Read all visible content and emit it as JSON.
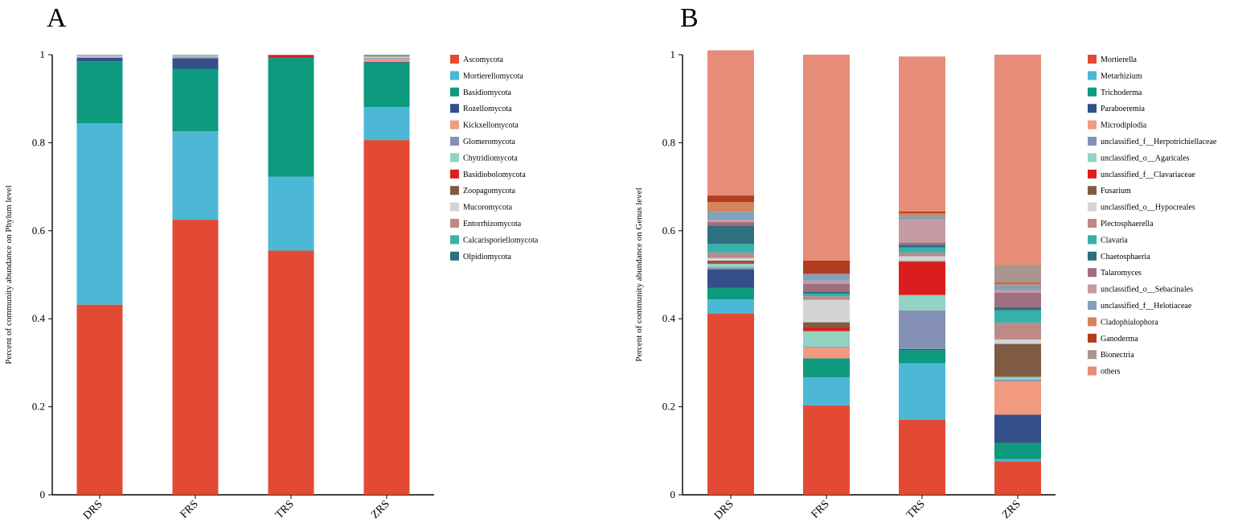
{
  "chart_data": [
    {
      "panel_letter": "A",
      "type": "bar",
      "stacked": true,
      "title": "",
      "xlabel": "",
      "ylabel": "Percent of community abundance on Phylum level",
      "ylim": [
        0,
        1
      ],
      "yticks": [
        "0",
        "0.2",
        "0.4",
        "0.6",
        "0.8",
        "1"
      ],
      "categories": [
        "DRS",
        "FRS",
        "TRS",
        "ZRS"
      ],
      "legend_position": "right",
      "series": [
        {
          "name": "Ascomycota",
          "color": "#e34a33",
          "values": [
            0.432,
            0.625,
            0.555,
            0.806
          ]
        },
        {
          "name": "Mortierellomycota",
          "color": "#4cb8d6",
          "values": [
            0.412,
            0.201,
            0.168,
            0.075
          ]
        },
        {
          "name": "Basidiomycota",
          "color": "#0e9a7e",
          "values": [
            0.141,
            0.142,
            0.27,
            0.101
          ]
        },
        {
          "name": "Rozellomycota",
          "color": "#34508a",
          "values": [
            0.008,
            0.024,
            0.0,
            0.002
          ]
        },
        {
          "name": "Kickxellomycota",
          "color": "#f29a7f",
          "values": [
            0.002,
            0.002,
            0.0,
            0.006
          ]
        },
        {
          "name": "Glomeromycota",
          "color": "#8591b4",
          "values": [
            0.001,
            0.002,
            0.0,
            0.002
          ]
        },
        {
          "name": "Chytridiomycota",
          "color": "#92d3c1",
          "values": [
            0.001,
            0.001,
            0.0,
            0.002
          ]
        },
        {
          "name": "Basidiobolomycota",
          "color": "#dc1d1d",
          "values": [
            0.0,
            0.0,
            0.006,
            0.0
          ]
        },
        {
          "name": "Zoopagomycota",
          "color": "#7e5b42",
          "values": [
            0.0,
            0.0,
            0.0,
            0.0
          ]
        },
        {
          "name": "Mucoromycota",
          "color": "#d4d4d4",
          "values": [
            0.001,
            0.001,
            0.0,
            0.001
          ]
        },
        {
          "name": "Entorrhizomycota",
          "color": "#bd8a87",
          "values": [
            0.001,
            0.001,
            0.001,
            0.002
          ]
        },
        {
          "name": "Calcarisporiellomycota",
          "color": "#38b0ac",
          "values": [
            0.001,
            0.001,
            0.0,
            0.003
          ]
        },
        {
          "name": "Olpidiomycota",
          "color": "#2e6f80",
          "values": [
            0.0,
            0.0,
            0.0,
            0.0
          ]
        }
      ]
    },
    {
      "panel_letter": "B",
      "type": "bar",
      "stacked": true,
      "title": "",
      "xlabel": "",
      "ylabel": "Percent of community abundance on Genus level",
      "ylim": [
        0,
        1
      ],
      "yticks": [
        "0",
        "0.2",
        "0.4",
        "0.6",
        "0.8",
        "1"
      ],
      "categories": [
        "DRS",
        "FRS",
        "TRS",
        "ZRS"
      ],
      "legend_position": "right",
      "series": [
        {
          "name": "Mortierella",
          "color": "#e34a33",
          "values": [
            0.412,
            0.203,
            0.17,
            0.076
          ]
        },
        {
          "name": "Metarhizium",
          "color": "#4cb8d6",
          "values": [
            0.032,
            0.064,
            0.129,
            0.005
          ]
        },
        {
          "name": "Trichoderma",
          "color": "#0e9a7e",
          "values": [
            0.026,
            0.043,
            0.03,
            0.037
          ]
        },
        {
          "name": "Paraboeremia",
          "color": "#34508a",
          "values": [
            0.042,
            0.0,
            0.002,
            0.064
          ]
        },
        {
          "name": "Microdiplodia",
          "color": "#f29a7f",
          "values": [
            0.0,
            0.025,
            0.0,
            0.076
          ]
        },
        {
          "name": "unclassified_f__Herpotrichiellaceae",
          "color": "#8591b4",
          "values": [
            0.005,
            0.002,
            0.088,
            0.004
          ]
        },
        {
          "name": "unclassified_o__Agaricales",
          "color": "#92d3c1",
          "values": [
            0.008,
            0.035,
            0.035,
            0.006
          ]
        },
        {
          "name": "unclassified_f__Clavariaceae",
          "color": "#dc1d1d",
          "values": [
            0.003,
            0.009,
            0.075,
            0.0
          ]
        },
        {
          "name": "Fusarium",
          "color": "#7e5b42",
          "values": [
            0.004,
            0.011,
            0.002,
            0.075
          ]
        },
        {
          "name": "unclassified_o__Hypocreales",
          "color": "#d4d4d4",
          "values": [
            0.006,
            0.051,
            0.011,
            0.01
          ]
        },
        {
          "name": "Plectosphaerella",
          "color": "#bd8a87",
          "values": [
            0.012,
            0.008,
            0.008,
            0.038
          ]
        },
        {
          "name": "Clavaria",
          "color": "#38b0ac",
          "values": [
            0.02,
            0.006,
            0.012,
            0.028
          ]
        },
        {
          "name": "Chaetosphaeria",
          "color": "#2e6f80",
          "values": [
            0.042,
            0.005,
            0.006,
            0.007
          ]
        },
        {
          "name": "Talaromyces",
          "color": "#9e6f82",
          "values": [
            0.008,
            0.017,
            0.005,
            0.033
          ]
        },
        {
          "name": "unclassified_o__Sebacinales",
          "color": "#c49ba2",
          "values": [
            0.005,
            0.008,
            0.052,
            0.006
          ]
        },
        {
          "name": "unclassified_f__Helotiaceae",
          "color": "#7fa2bd",
          "values": [
            0.018,
            0.014,
            0.008,
            0.012
          ]
        },
        {
          "name": "Cladophialophora",
          "color": "#d4845a",
          "values": [
            0.022,
            0.001,
            0.007,
            0.003
          ]
        },
        {
          "name": "Ganoderma",
          "color": "#b13d1e",
          "values": [
            0.015,
            0.03,
            0.004,
            0.002
          ]
        },
        {
          "name": "Bionectria",
          "color": "#a9958c",
          "values": [
            0.0,
            0.0,
            0.0,
            0.04
          ]
        },
        {
          "name": "others",
          "color": "#e68c78",
          "values": [
            0.33,
            0.468,
            0.352,
            0.478
          ]
        }
      ]
    }
  ]
}
